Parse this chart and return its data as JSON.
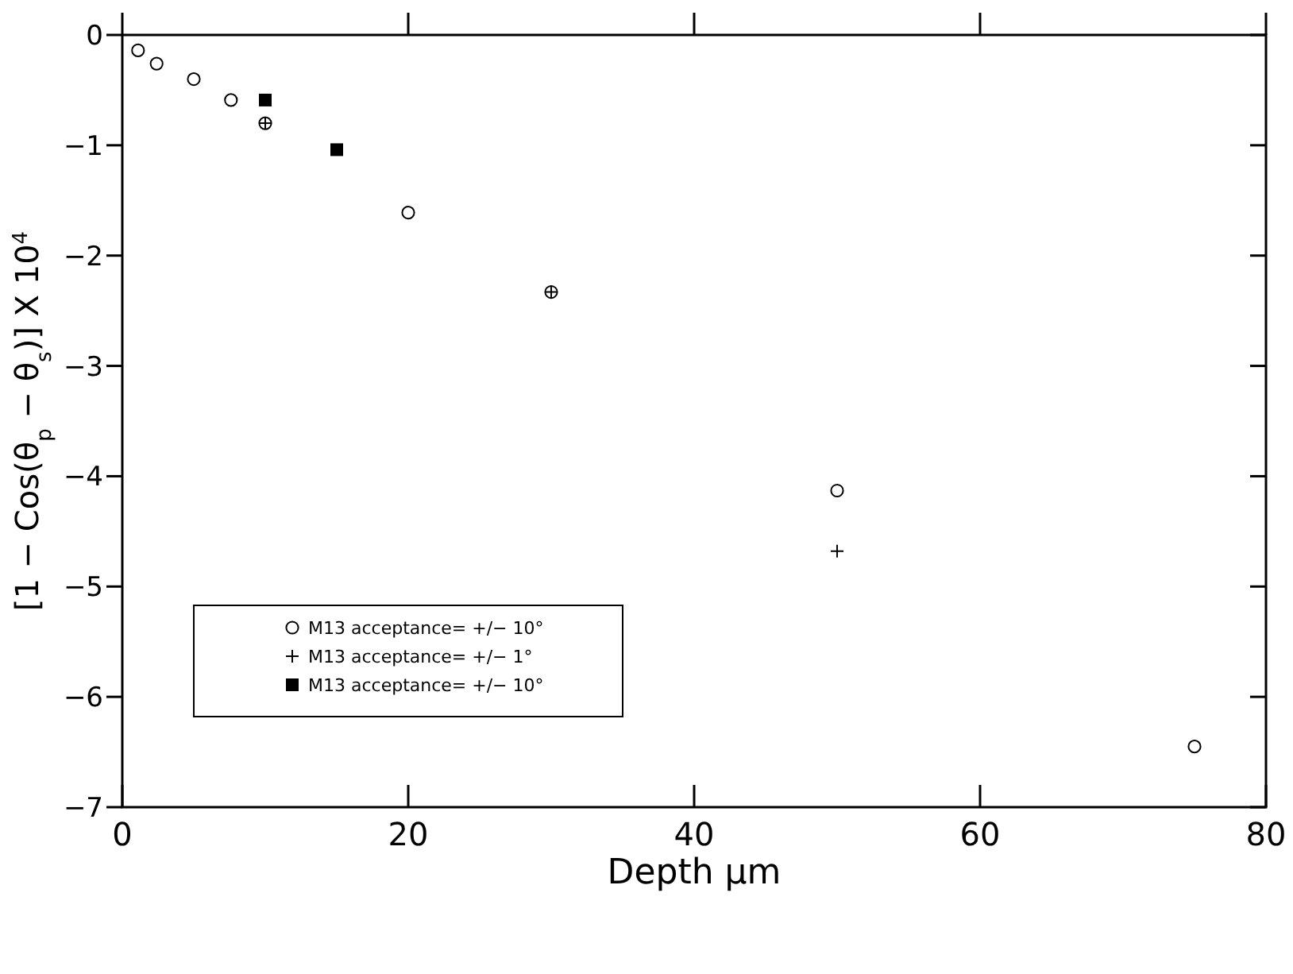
{
  "chart_data": {
    "type": "scatter",
    "xlabel": "Depth μm",
    "ylabel": "[1 − Cos(θ$_{p}$ − θ$_{s}$)] X 10$^{4}$",
    "xlim": [
      0,
      80
    ],
    "xticks": [
      0,
      20,
      40,
      60,
      80
    ],
    "ylim": [
      -7,
      0
    ],
    "yticks": [
      -7,
      -6,
      -5,
      -4,
      -3,
      -2,
      -1,
      0
    ],
    "grid": false,
    "legend": "bottom left",
    "series": [
      {
        "name": "M13 acceptance= +/−  10°",
        "color": "#000000",
        "marker": "circle",
        "x": [
          1.1,
          2.4,
          5,
          7.6,
          10,
          20,
          30,
          50,
          75
        ],
        "values": [
          -0.14,
          -0.26,
          -0.4,
          -0.59,
          -0.8,
          -1.61,
          -2.33,
          -4.13,
          -6.45
        ]
      },
      {
        "name": "M13 acceptance= +/−  1°",
        "color": "#000000",
        "marker": "cross",
        "x": [
          10,
          30,
          50
        ],
        "values": [
          -0.8,
          -2.33,
          -4.68
        ]
      },
      {
        "name": "M13 acceptance= +/−  10°",
        "color": "#000000",
        "marker": "square",
        "x": [
          10,
          15
        ],
        "values": [
          -0.59,
          -1.04
        ]
      }
    ]
  }
}
